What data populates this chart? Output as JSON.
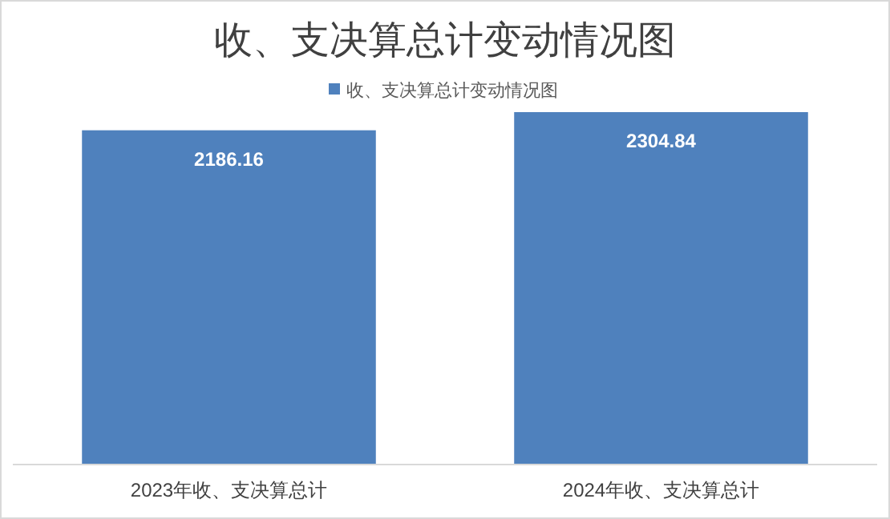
{
  "chart_data": {
    "type": "bar",
    "title": "收、支决算总计变动情况图",
    "categories": [
      "2023年收、支决算总计",
      "2024年收、支决算总计"
    ],
    "series": [
      {
        "name": "收、支决算总计变动情况图",
        "color": "#4f81bd",
        "values": [
          2186.16,
          2304.84
        ]
      }
    ],
    "data_labels": true,
    "legend": "top"
  }
}
